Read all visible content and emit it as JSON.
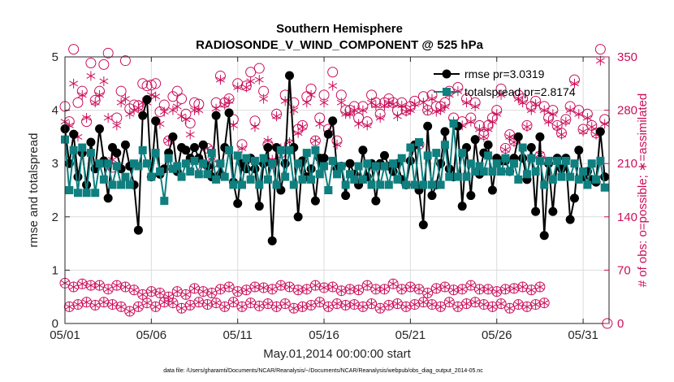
{
  "chart_data": {
    "type": "line",
    "title": "Southern Hemisphere",
    "subtitle": "RADIOSONDE_V_WIND_COMPONENT @ 525 hPa",
    "xlabel": "May.01,2014 00:00:00 start",
    "ylabel": "rmse and totalspread",
    "ylabel_right": "# of obs: o=possible; ∗=assimilated",
    "xlim": [
      1,
      32.5
    ],
    "ylim": [
      0,
      5
    ],
    "ylim_right": [
      0,
      350
    ],
    "x_ticks": [
      1,
      6,
      11,
      16,
      21,
      26,
      31
    ],
    "x_tick_labels": [
      "05/01",
      "05/06",
      "05/11",
      "05/16",
      "05/21",
      "05/26",
      "05/31"
    ],
    "y_ticks": [
      0,
      1,
      2,
      3,
      4,
      5
    ],
    "y_tick_labels": [
      "0",
      "1",
      "2",
      "3",
      "4",
      "5"
    ],
    "y_ticks_right": [
      0,
      70,
      140,
      210,
      280,
      350
    ],
    "y_tick_labels_right": [
      "0",
      "70",
      "140",
      "210",
      "280",
      "350"
    ],
    "grid": true,
    "legend_position": "top-right",
    "footnote": "data file: /Users/gharamti/Documents/NCAR/Reanalysis/~/Documents/NCAR/Reanalysis/webpub/obs_diag_output_2014-05.nc",
    "colors": {
      "rmse": "#000000",
      "totalspread": "#0f7f7f",
      "obs": "#cc0e5a"
    },
    "x": [
      1.0,
      1.25,
      1.5,
      1.75,
      2.0,
      2.25,
      2.5,
      2.75,
      3.0,
      3.25,
      3.5,
      3.75,
      4.0,
      4.25,
      4.5,
      4.75,
      5.0,
      5.25,
      5.5,
      5.75,
      6.0,
      6.25,
      6.5,
      6.75,
      7.0,
      7.25,
      7.5,
      7.75,
      8.0,
      8.25,
      8.5,
      8.75,
      9.0,
      9.25,
      9.5,
      9.75,
      10.0,
      10.25,
      10.5,
      10.75,
      11.0,
      11.25,
      11.5,
      11.75,
      12.0,
      12.25,
      12.5,
      12.75,
      13.0,
      13.25,
      13.5,
      13.75,
      14.0,
      14.25,
      14.5,
      14.75,
      15.0,
      15.25,
      15.5,
      15.75,
      16.0,
      16.25,
      16.5,
      16.75,
      17.0,
      17.25,
      17.5,
      17.75,
      18.0,
      18.25,
      18.5,
      18.75,
      19.0,
      19.25,
      19.5,
      19.75,
      20.0,
      20.25,
      20.5,
      20.75,
      21.0,
      21.25,
      21.5,
      21.75,
      22.0,
      22.25,
      22.5,
      22.75,
      23.0,
      23.25,
      23.5,
      23.75,
      24.0,
      24.25,
      24.5,
      24.75,
      25.0,
      25.25,
      25.5,
      25.75,
      26.0,
      26.25,
      26.5,
      26.75,
      27.0,
      27.25,
      27.5,
      27.75,
      28.0,
      28.25,
      28.5,
      28.75,
      29.0,
      29.25,
      29.5,
      29.75,
      30.0,
      30.25,
      30.5,
      30.75,
      31.0,
      31.25,
      31.5,
      31.75,
      32.0,
      32.25
    ],
    "series": [
      {
        "name": "rmse pr=3.0319",
        "values": [
          3.65,
          3.0,
          3.55,
          2.75,
          3.2,
          2.6,
          3.4,
          2.9,
          3.65,
          3.05,
          2.35,
          3.3,
          3.2,
          2.9,
          3.35,
          2.95,
          2.6,
          1.75,
          3.9,
          4.2,
          2.75,
          3.8,
          2.8,
          2.9,
          3.2,
          3.5,
          2.85,
          3.3,
          3.25,
          3.1,
          3.3,
          3.1,
          3.35,
          2.95,
          2.75,
          3.9,
          2.8,
          3.3,
          3.95,
          2.65,
          2.25,
          3.0,
          2.9,
          3.1,
          2.9,
          2.2,
          3.0,
          3.3,
          1.55,
          3.3,
          2.5,
          3.0,
          4.65,
          3.3,
          2.0,
          3.05,
          2.75,
          2.9,
          2.3,
          3.1,
          3.1,
          3.55,
          3.8,
          2.9,
          2.95,
          2.4,
          3.0,
          2.8,
          2.6,
          3.25,
          2.75,
          3.0,
          2.3,
          3.0,
          3.15,
          2.95,
          2.85,
          3.0,
          2.7,
          2.6,
          3.05,
          3.35,
          2.5,
          1.85,
          3.7,
          2.4,
          2.6,
          3.0,
          3.6,
          2.9,
          2.75,
          3.7,
          2.2,
          3.3,
          2.4,
          3.45,
          2.8,
          3.2,
          3.35,
          2.5,
          3.1,
          3.05,
          3.05,
          2.85,
          3.1,
          3.5,
          3.1,
          2.7,
          3.3,
          2.1,
          3.5,
          1.65,
          3.0,
          2.1,
          3.1,
          2.9,
          3.1,
          1.95,
          2.35,
          3.25,
          2.75,
          2.85,
          2.7,
          2.65,
          3.6,
          2.75
        ],
        "marker": "circle",
        "color": "#000000"
      },
      {
        "name": "totalspread pr=2.8174",
        "values": [
          3.45,
          2.5,
          3.25,
          2.45,
          3.3,
          2.45,
          3.2,
          2.45,
          3.0,
          2.7,
          3.0,
          2.6,
          2.95,
          2.6,
          2.75,
          2.6,
          3.0,
          2.95,
          3.25,
          3.0,
          2.75,
          3.2,
          2.85,
          2.3,
          3.1,
          2.9,
          2.95,
          2.75,
          3.0,
          2.85,
          3.05,
          2.8,
          3.0,
          2.8,
          3.2,
          2.7,
          3.0,
          2.75,
          3.25,
          2.6,
          3.15,
          2.6,
          3.1,
          2.7,
          3.05,
          2.6,
          3.1,
          2.7,
          3.0,
          2.6,
          3.25,
          2.75,
          3.25,
          2.6,
          3.0,
          2.7,
          3.2,
          2.7,
          3.25,
          2.8,
          2.95,
          2.5,
          3.05,
          2.8,
          2.95,
          2.6,
          2.8,
          2.7,
          2.95,
          2.7,
          3.0,
          2.6,
          2.95,
          2.6,
          2.95,
          2.6,
          3.0,
          2.7,
          3.1,
          2.6,
          3.3,
          2.6,
          3.4,
          2.6,
          3.15,
          2.6,
          3.2,
          2.6,
          3.35,
          2.75,
          3.75,
          2.75,
          3.2,
          2.75,
          3.0,
          2.85,
          2.95,
          2.85,
          3.15,
          2.85,
          3.0,
          2.85,
          3.1,
          2.85,
          3.0,
          2.7,
          3.3,
          2.8,
          3.1,
          2.85,
          3.05,
          2.6,
          3.05,
          2.7,
          3.05,
          2.75,
          3.05,
          2.75,
          3.0,
          2.7,
          2.85,
          2.6,
          3.0,
          2.7,
          3.05,
          2.55
        ],
        "marker": "square",
        "color": "#0f7f7f"
      }
    ],
    "obs_possible": [
      285,
      265,
      360,
      290,
      305,
      265,
      342,
      293,
      305,
      340,
      355,
      205,
      270,
      305,
      345,
      282,
      287,
      286,
      315,
      312,
      313,
      315,
      278,
      287,
      240,
      298,
      305,
      295,
      275,
      263,
      290,
      288,
      200,
      230,
      210,
      290,
      325,
      290,
      295,
      268,
      315,
      235,
      312,
      330,
      266,
      335,
      305,
      235,
      210,
      275,
      224,
      300,
      235,
      290,
      255,
      260,
      298,
      308,
      240,
      270,
      300,
      255,
      330,
      240,
      300,
      280,
      280,
      285,
      270,
      285,
      265,
      300,
      290,
      275,
      290,
      295,
      290,
      280,
      290,
      280,
      285,
      292,
      235,
      298,
      280,
      300,
      285,
      285,
      290,
      305,
      270,
      310,
      265,
      295,
      270,
      290,
      260,
      248,
      260,
      270,
      280,
      308,
      230,
      248,
      240,
      300,
      295,
      260,
      285,
      292,
      220,
      285,
      270,
      280,
      260,
      250,
      268,
      285,
      320,
      280,
      255,
      275,
      260,
      250,
      360,
      268
    ],
    "obs_assimilated": [
      265,
      260,
      315,
      245,
      300,
      270,
      325,
      290,
      300,
      318,
      270,
      215,
      260,
      290,
      295,
      275,
      280,
      283,
      290,
      290,
      300,
      298,
      262,
      278,
      240,
      280,
      285,
      272,
      268,
      248,
      280,
      280,
      210,
      230,
      215,
      282,
      320,
      287,
      292,
      260,
      310,
      230,
      310,
      318,
      258,
      320,
      295,
      240,
      215,
      272,
      230,
      292,
      238,
      280,
      250,
      258,
      290,
      300,
      240,
      262,
      290,
      250,
      312,
      235,
      290,
      275,
      275,
      280,
      262,
      280,
      260,
      290,
      286,
      270,
      286,
      290,
      288,
      272,
      286,
      278,
      280,
      288,
      235,
      290,
      280,
      295,
      278,
      280,
      285,
      300,
      265,
      305,
      260,
      290,
      265,
      285,
      255,
      245,
      255,
      265,
      275,
      300,
      228,
      245,
      238,
      295,
      290,
      258,
      280,
      288,
      222,
      280,
      265,
      275,
      258,
      248,
      265,
      280,
      315,
      275,
      252,
      270,
      258,
      248,
      345,
      262
    ],
    "obs_low_possible": [
      53,
      22,
      48,
      25,
      52,
      28,
      50,
      24,
      50,
      28,
      45,
      25,
      50,
      22,
      48,
      16,
      44,
      22,
      38,
      27,
      42,
      22,
      40,
      28,
      35,
      27,
      42,
      20,
      38,
      24,
      46,
      28,
      42,
      25,
      40,
      27,
      45,
      22,
      48,
      28,
      42,
      22,
      44,
      27,
      48,
      23,
      47,
      26,
      45,
      22,
      50,
      26,
      48,
      20,
      44,
      22,
      45,
      24,
      50,
      28,
      47,
      22,
      48,
      26,
      43,
      24,
      45,
      25,
      44,
      22,
      50,
      26,
      45,
      20,
      45,
      24,
      52,
      26,
      45,
      22,
      48,
      25,
      45,
      28,
      40,
      25,
      46,
      22,
      48,
      28,
      44,
      22,
      45,
      26,
      50,
      28,
      45,
      25,
      45,
      22,
      42,
      26,
      45,
      20,
      46,
      25,
      48,
      22,
      44,
      25,
      48,
      27
    ],
    "obs_low_assimilated": [
      53,
      22,
      48,
      25,
      52,
      28,
      50,
      24,
      50,
      28,
      45,
      25,
      50,
      22,
      48,
      16,
      44,
      22,
      38,
      27,
      42,
      22,
      40,
      28,
      35,
      27,
      42,
      20,
      38,
      24,
      46,
      28,
      42,
      25,
      40,
      27,
      45,
      22,
      48,
      28,
      42,
      22,
      44,
      27,
      48,
      23,
      47,
      26,
      45,
      22,
      50,
      26,
      48,
      20,
      44,
      22,
      45,
      24,
      50,
      28,
      47,
      22,
      48,
      26,
      43,
      24,
      45,
      25,
      44,
      22,
      50,
      26,
      45,
      20,
      45,
      24,
      52,
      26,
      45,
      22,
      48,
      25,
      45,
      28,
      40,
      25,
      46,
      22,
      48,
      28,
      44,
      22,
      45,
      26,
      50,
      28,
      45,
      25,
      45,
      22,
      42,
      26,
      45,
      20,
      46,
      25,
      48,
      22,
      44,
      25,
      48,
      27
    ]
  }
}
